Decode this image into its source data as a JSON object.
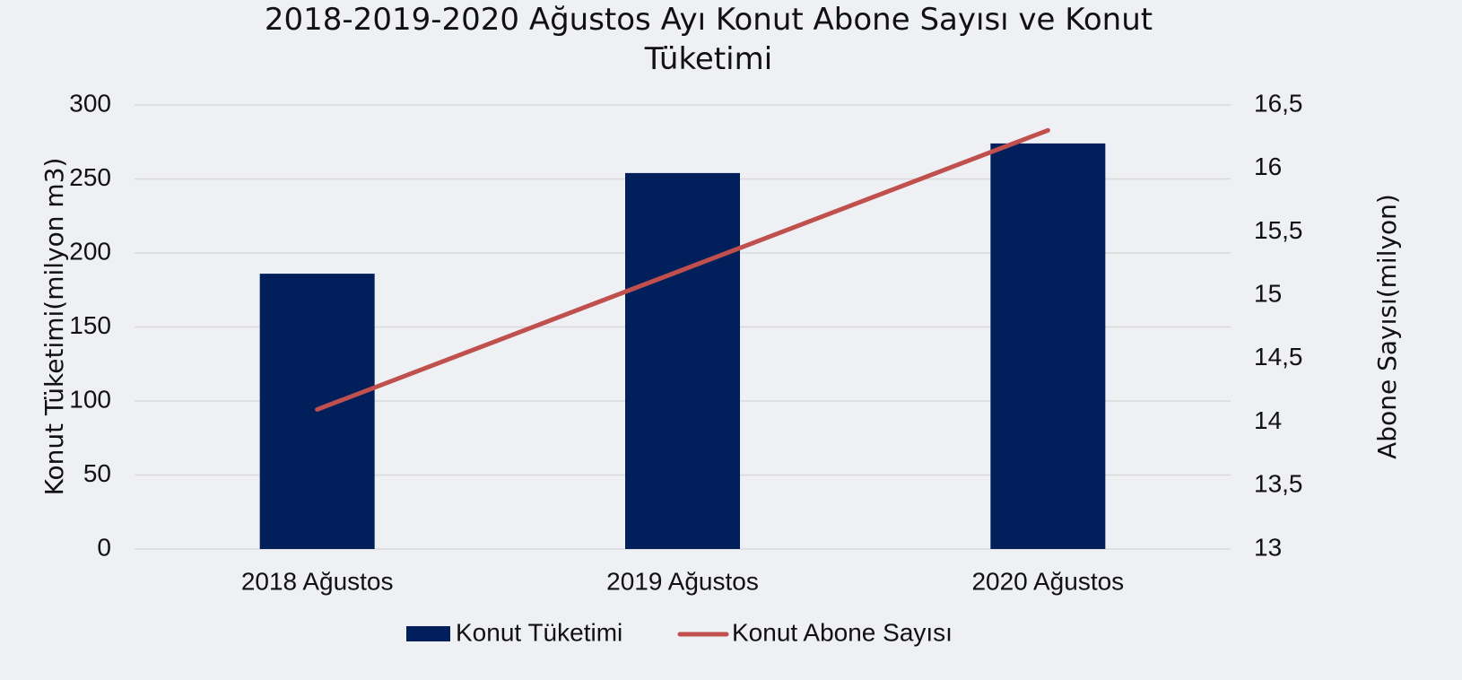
{
  "chart_data": {
    "type": "bar-line",
    "title": "2018-2019-2020 Ağustos Ayı Konut Abone Sayısı ve Konut Tüketimi",
    "categories": [
      "2018 Ağustos",
      "2019 Ağustos",
      "2020 Ağustos"
    ],
    "series": [
      {
        "name": "Konut Tüketimi",
        "type": "bar",
        "color": "#001f5b",
        "values": [
          186,
          254,
          274
        ]
      },
      {
        "name": "Konut Abone Sayısı",
        "type": "line",
        "axis": "y2",
        "color": "#c0504d",
        "values": [
          14.1,
          15.2,
          16.3
        ]
      }
    ],
    "ylabel": "Konut Tüketimi(milyon m3)",
    "y2label": "Abone Sayısı(milyon)",
    "ylim": [
      0,
      300
    ],
    "yticks": [
      0,
      50,
      100,
      150,
      200,
      250,
      300
    ],
    "y2lim": [
      13,
      16.5
    ],
    "y2ticks": [
      13,
      {
        "value": 13.5,
        "label": "13,5"
      },
      14,
      {
        "value": 14.5,
        "label": "14,5"
      },
      15,
      {
        "value": 15.5,
        "label": "15,5"
      },
      16,
      {
        "value": 16.5,
        "label": "16,5"
      }
    ],
    "grid": true,
    "legend": "bottom"
  }
}
